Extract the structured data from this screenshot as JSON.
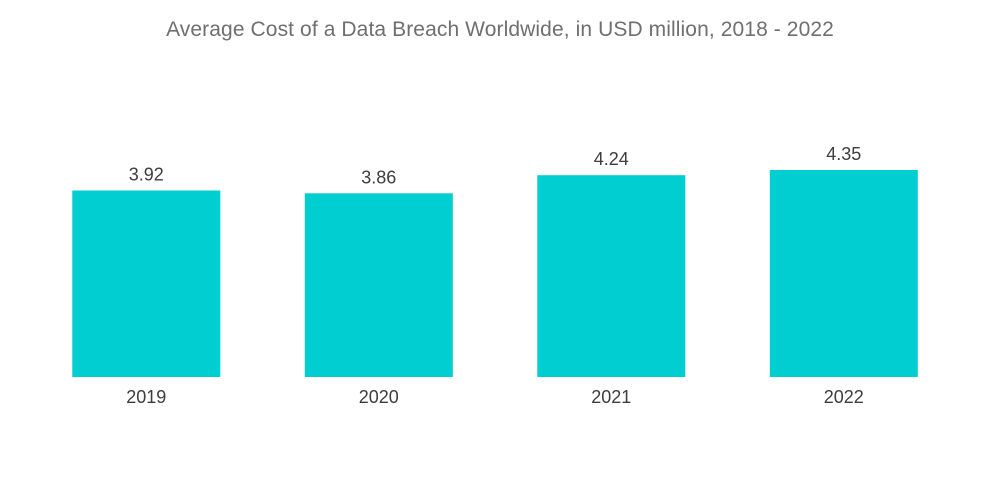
{
  "chart_data": {
    "type": "bar",
    "title": "Average Cost of a Data Breach Worldwide, in USD million, 2018 - 2022",
    "categories": [
      "2019",
      "2020",
      "2021",
      "2022"
    ],
    "values": [
      3.92,
      3.86,
      4.24,
      4.35
    ],
    "value_labels": [
      "3.92",
      "3.86",
      "4.24",
      "4.35"
    ],
    "xlabel": "",
    "ylabel": "",
    "ylim": [
      0,
      4.35
    ],
    "grid": false,
    "legend": "none",
    "bar_color": "#00ced1",
    "text_color": "#3d3d3d",
    "title_color": "#6f6f6f"
  }
}
